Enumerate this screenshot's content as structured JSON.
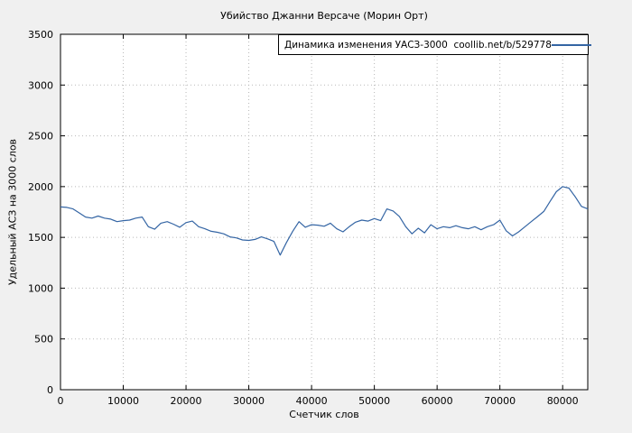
{
  "chart": {
    "title": "Убийство Джанни Версаче (Морин Орт)",
    "legend_label": "Динамика изменения УАСЗ-3000  coollib.net/b/529778",
    "xlabel": "Счетчик слов",
    "ylabel": "Удельный АСЗ на 3000 слов"
  },
  "chart_data": {
    "type": "line",
    "title": "Убийство Джанни Версаче (Морин Орт)",
    "xlabel": "Счетчик слов",
    "ylabel": "Удельный АСЗ на 3000 слов",
    "legend": "Динамика изменения УАСЗ-3000  coollib.net/b/529778",
    "legend_position": "top-right-inside-box",
    "grid": true,
    "xlim": [
      0,
      84000
    ],
    "ylim": [
      0,
      3500
    ],
    "xticks": [
      0,
      10000,
      20000,
      30000,
      40000,
      50000,
      60000,
      70000,
      80000
    ],
    "yticks": [
      0,
      500,
      1000,
      1500,
      2000,
      2500,
      3000,
      3500
    ],
    "line_color": "#3465a4",
    "grid_color": "#b8b8b8",
    "plot_bg": "#ffffff",
    "page_bg": "#f0f0f0",
    "points": [
      [
        0,
        1800
      ],
      [
        1000,
        1795
      ],
      [
        2000,
        1780
      ],
      [
        3000,
        1740
      ],
      [
        4000,
        1700
      ],
      [
        5000,
        1690
      ],
      [
        6000,
        1710
      ],
      [
        7000,
        1690
      ],
      [
        8000,
        1680
      ],
      [
        9000,
        1655
      ],
      [
        10000,
        1665
      ],
      [
        11000,
        1670
      ],
      [
        12000,
        1690
      ],
      [
        13000,
        1700
      ],
      [
        14000,
        1605
      ],
      [
        15000,
        1580
      ],
      [
        16000,
        1640
      ],
      [
        17000,
        1655
      ],
      [
        18000,
        1630
      ],
      [
        19000,
        1600
      ],
      [
        20000,
        1645
      ],
      [
        21000,
        1660
      ],
      [
        22000,
        1605
      ],
      [
        23000,
        1585
      ],
      [
        24000,
        1560
      ],
      [
        25000,
        1550
      ],
      [
        26000,
        1535
      ],
      [
        27000,
        1505
      ],
      [
        28000,
        1495
      ],
      [
        29000,
        1475
      ],
      [
        30000,
        1470
      ],
      [
        31000,
        1480
      ],
      [
        32000,
        1505
      ],
      [
        33000,
        1485
      ],
      [
        34000,
        1460
      ],
      [
        35000,
        1325
      ],
      [
        36000,
        1450
      ],
      [
        37000,
        1560
      ],
      [
        38000,
        1655
      ],
      [
        39000,
        1600
      ],
      [
        40000,
        1625
      ],
      [
        41000,
        1620
      ],
      [
        42000,
        1610
      ],
      [
        43000,
        1640
      ],
      [
        44000,
        1585
      ],
      [
        45000,
        1555
      ],
      [
        46000,
        1605
      ],
      [
        47000,
        1650
      ],
      [
        48000,
        1670
      ],
      [
        49000,
        1660
      ],
      [
        50000,
        1685
      ],
      [
        51000,
        1665
      ],
      [
        52000,
        1780
      ],
      [
        53000,
        1760
      ],
      [
        54000,
        1705
      ],
      [
        55000,
        1605
      ],
      [
        56000,
        1535
      ],
      [
        57000,
        1590
      ],
      [
        58000,
        1545
      ],
      [
        59000,
        1625
      ],
      [
        60000,
        1585
      ],
      [
        61000,
        1605
      ],
      [
        62000,
        1595
      ],
      [
        63000,
        1615
      ],
      [
        64000,
        1595
      ],
      [
        65000,
        1585
      ],
      [
        66000,
        1605
      ],
      [
        67000,
        1575
      ],
      [
        68000,
        1605
      ],
      [
        69000,
        1625
      ],
      [
        70000,
        1670
      ],
      [
        71000,
        1565
      ],
      [
        72000,
        1515
      ],
      [
        73000,
        1555
      ],
      [
        74000,
        1605
      ],
      [
        75000,
        1655
      ],
      [
        76000,
        1705
      ],
      [
        77000,
        1755
      ],
      [
        78000,
        1855
      ],
      [
        79000,
        1950
      ],
      [
        80000,
        2000
      ],
      [
        81000,
        1985
      ],
      [
        82000,
        1900
      ],
      [
        83000,
        1805
      ],
      [
        84000,
        1780
      ]
    ]
  }
}
